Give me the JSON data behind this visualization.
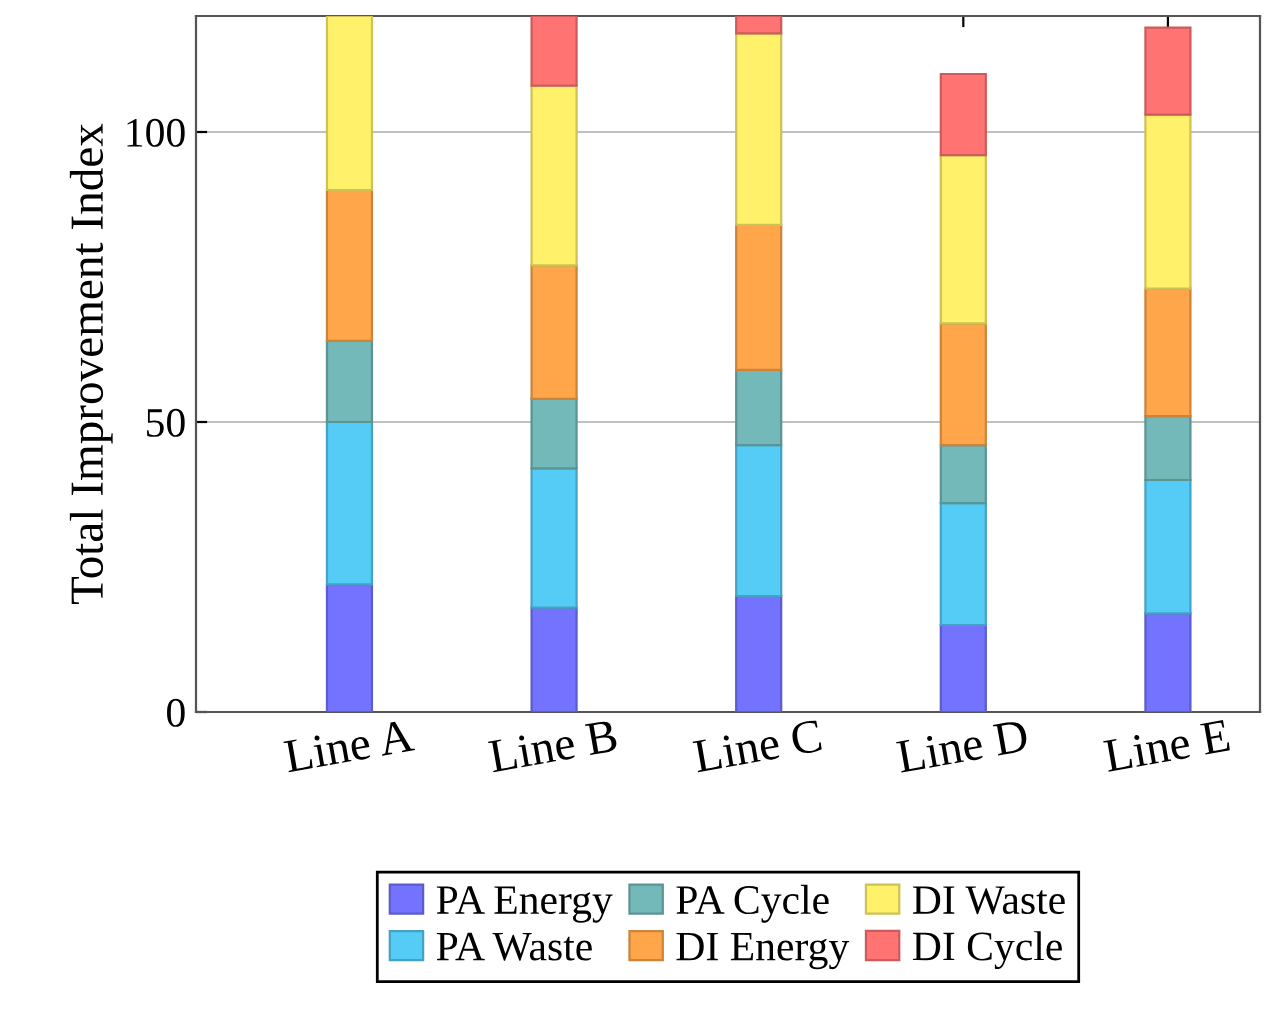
{
  "chart_data": {
    "type": "bar",
    "stacked": true,
    "ylabel": "Total Improvement Index",
    "categories": [
      "Line A",
      "Line B",
      "Line C",
      "Line D",
      "Line E"
    ],
    "series": [
      {
        "name": "PA Energy",
        "color": "#7373ff",
        "values": [
          22,
          18,
          20,
          15,
          17
        ]
      },
      {
        "name": "PA Waste",
        "color": "#55ccf5",
        "values": [
          28,
          24,
          26,
          21,
          23
        ]
      },
      {
        "name": "PA Cycle",
        "color": "#73b9b9",
        "values": [
          14,
          12,
          13,
          10,
          11
        ]
      },
      {
        "name": "DI Energy",
        "color": "#ffa54a",
        "values": [
          26,
          23,
          25,
          21,
          22
        ]
      },
      {
        "name": "DI Waste",
        "color": "#fff26a",
        "values": [
          30,
          31,
          33,
          29,
          30
        ]
      },
      {
        "name": "DI Cycle",
        "color": "#ff7373",
        "values": [
          null,
          12,
          3,
          14,
          15
        ]
      }
    ],
    "ylim": [
      0,
      120
    ],
    "yticks": [
      0,
      50,
      100
    ],
    "grid": "y",
    "legend": "bottom"
  }
}
